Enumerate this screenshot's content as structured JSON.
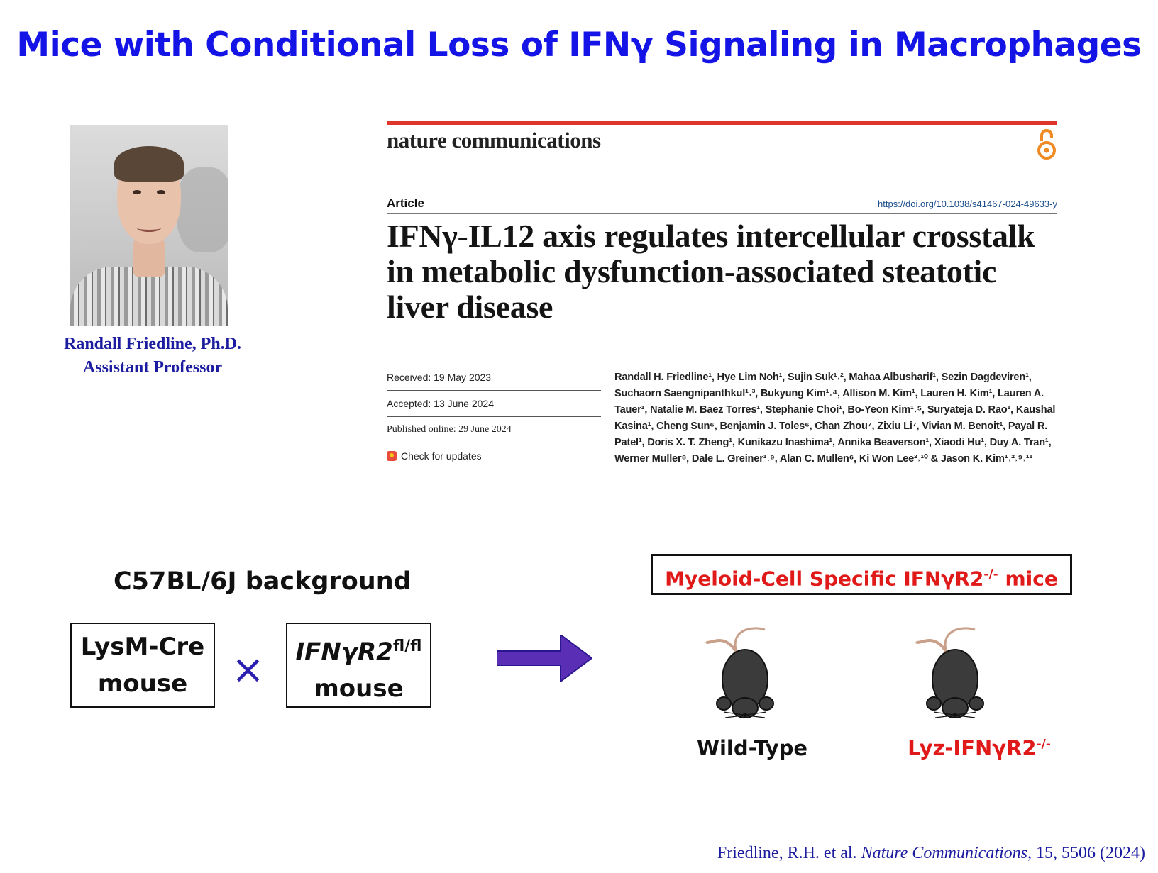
{
  "slide": {
    "title": "Mice with Conditional Loss of IFNγ Signaling in Macrophages"
  },
  "person": {
    "name": "Randall Friedline, Ph.D.",
    "role": "Assistant Professor"
  },
  "article": {
    "journal": "nature communications",
    "type_label": "Article",
    "doi": "https://doi.org/10.1038/s41467-024-49633-y",
    "title": "IFNγ-IL12 axis regulates intercellular crosstalk in metabolic dysfunction-associated steatotic liver disease",
    "received": "Received: 19 May 2023",
    "accepted": "Accepted: 13 June 2024",
    "published": "Published online: 29 June 2024",
    "check_updates": "Check for updates",
    "authors": "Randall H. Friedline¹, Hye Lim Noh¹, Sujin Suk¹˒², Mahaa Albusharif¹, Sezin Dagdeviren¹, Suchaorn Saengnipanthkul¹˒³, Bukyung Kim¹˒⁴, Allison M. Kim¹, Lauren H. Kim¹, Lauren A. Tauer¹, Natalie M. Baez Torres¹, Stephanie Choi¹, Bo-Yeon Kim¹˒⁵, Suryateja D. Rao¹, Kaushal Kasina¹, Cheng Sun⁶, Benjamin J. Toles⁶, Chan Zhou⁷, Zixiu Li⁷, Vivian M. Benoit¹, Payal R. Patel¹, Doris X. T. Zheng¹, Kunikazu Inashima¹, Annika Beaverson¹, Xiaodi Hu¹, Duy A. Tran¹, Werner Muller⁸, Dale L. Greiner¹˒⁹, Alan C. Mullen⁶, Ki Won Lee²˒¹⁰ & Jason K. Kim¹˒²˒⁹˒¹¹"
  },
  "diagram": {
    "background_label": "C57BL/6J background",
    "box1_line1": "LysM-Cre",
    "box1_line2": "mouse",
    "box2_gene": "IFNγR2",
    "box2_sup": "fl/fl",
    "box2_line2": "mouse",
    "cross_symbol": "×",
    "result_title": "Myeloid-Cell Specific IFNγR2",
    "result_sup": "-/-",
    "result_suffix": " mice",
    "mouse1_label": "Wild-Type",
    "mouse2_label": "Lyz-IFNγR2",
    "mouse2_sup": "-/-"
  },
  "citation": {
    "authors": "Friedline, R.H. et al. ",
    "journal": "Nature Communications",
    "rest": ", 15, 5506 (2024)"
  },
  "colors": {
    "title_blue": "#1414e6",
    "accent_red": "#e01919",
    "arrow_purple": "#5a2fb5",
    "journal_red_bar": "#e0352b"
  }
}
